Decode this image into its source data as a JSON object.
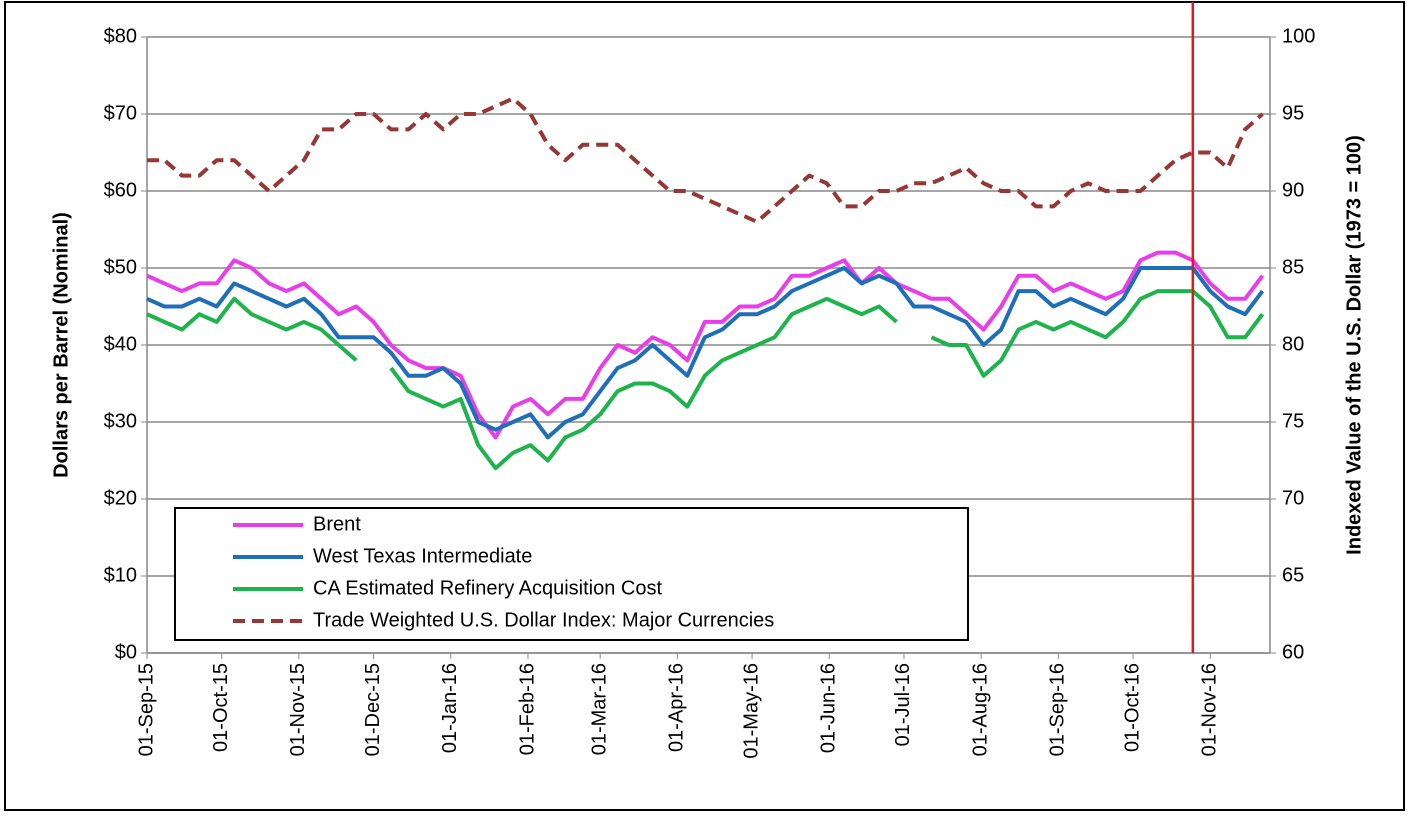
{
  "chart_data": {
    "type": "line",
    "y_label": "Dollars per Barrel (Nominal)",
    "y2_label": "Indexed Value of the U.S. Dollar (1973 = 100)",
    "x": [
      "2015-09-01",
      "2015-09-08",
      "2015-09-15",
      "2015-09-22",
      "2015-09-29",
      "2015-10-06",
      "2015-10-13",
      "2015-10-20",
      "2015-10-27",
      "2015-11-03",
      "2015-11-10",
      "2015-11-17",
      "2015-11-24",
      "2015-12-01",
      "2015-12-08",
      "2015-12-15",
      "2015-12-22",
      "2015-12-29",
      "2016-01-05",
      "2016-01-12",
      "2016-01-19",
      "2016-01-26",
      "2016-02-02",
      "2016-02-09",
      "2016-02-16",
      "2016-02-23",
      "2016-03-01",
      "2016-03-08",
      "2016-03-15",
      "2016-03-22",
      "2016-03-29",
      "2016-04-05",
      "2016-04-12",
      "2016-04-19",
      "2016-04-26",
      "2016-05-03",
      "2016-05-10",
      "2016-05-17",
      "2016-05-24",
      "2016-05-31",
      "2016-06-07",
      "2016-06-14",
      "2016-06-21",
      "2016-06-28",
      "2016-07-05",
      "2016-07-12",
      "2016-07-19",
      "2016-07-26",
      "2016-08-02",
      "2016-08-09",
      "2016-08-16",
      "2016-08-23",
      "2016-08-30",
      "2016-09-06",
      "2016-09-13",
      "2016-09-20",
      "2016-09-27",
      "2016-10-04",
      "2016-10-11",
      "2016-10-18",
      "2016-10-25",
      "2016-11-01",
      "2016-11-08",
      "2016-11-15",
      "2016-11-22"
    ],
    "series": [
      {
        "name": "Brent",
        "color": "#e83ee8",
        "dash": false,
        "values": [
          49,
          48,
          47,
          48,
          48,
          51,
          50,
          48,
          47,
          48,
          46,
          44,
          45,
          43,
          40,
          38,
          37,
          37,
          36,
          31,
          28,
          32,
          33,
          31,
          33,
          33,
          37,
          40,
          39,
          41,
          40,
          38,
          43,
          43,
          45,
          45,
          46,
          49,
          49,
          50,
          51,
          48,
          50,
          48,
          47,
          46,
          46,
          44,
          42,
          45,
          49,
          49,
          47,
          48,
          47,
          46,
          47,
          51,
          52,
          52,
          51,
          48,
          46,
          46,
          49
        ]
      },
      {
        "name": "West Texas Intermediate",
        "color": "#1f6fb8",
        "dash": false,
        "values": [
          46,
          45,
          45,
          46,
          45,
          48,
          47,
          46,
          45,
          46,
          44,
          41,
          41,
          41,
          39,
          36,
          36,
          37,
          35,
          30,
          29,
          30,
          31,
          28,
          30,
          31,
          34,
          37,
          38,
          40,
          38,
          36,
          41,
          42,
          44,
          44,
          45,
          47,
          48,
          49,
          50,
          48,
          49,
          48,
          45,
          45,
          44,
          43,
          40,
          42,
          47,
          47,
          45,
          46,
          45,
          44,
          46,
          50,
          50,
          50,
          50,
          47,
          45,
          44,
          47
        ]
      },
      {
        "name": "CA Estimated Refinery Acquisition Cost",
        "color": "#1fb34d",
        "dash": false,
        "values": [
          44,
          43,
          42,
          44,
          43,
          46,
          44,
          43,
          42,
          43,
          42,
          40,
          38,
          null,
          37,
          34,
          33,
          32,
          33,
          27,
          24,
          26,
          27,
          25,
          28,
          29,
          31,
          34,
          35,
          35,
          34,
          32,
          36,
          38,
          39,
          40,
          41,
          44,
          45,
          46,
          45,
          44,
          45,
          43,
          null,
          41,
          40,
          40,
          36,
          38,
          42,
          43,
          42,
          43,
          42,
          41,
          43,
          46,
          47,
          47,
          47,
          45,
          41,
          41,
          44
        ]
      },
      {
        "name": "Trade Weighted U.S. Dollar Index: Major Currencies",
        "color": "#953735",
        "dash": true,
        "axis": "y2",
        "values": [
          92,
          92,
          91,
          91,
          92,
          92,
          91,
          90,
          91,
          92,
          94,
          94,
          95,
          95,
          94,
          94,
          95,
          94,
          95,
          95,
          95.5,
          96,
          95,
          93,
          92,
          93,
          93,
          93,
          92,
          91,
          90,
          90,
          89.5,
          89,
          88.5,
          88,
          89,
          90,
          91,
          90.5,
          89,
          89,
          90,
          90,
          90.5,
          90.5,
          91,
          91.5,
          90.5,
          90,
          90,
          89,
          89,
          90,
          90.5,
          90,
          90,
          90,
          91,
          92,
          92.5,
          92.5,
          91.5,
          94,
          95
        ]
      }
    ],
    "xlim": [
      "2015-09-01",
      "2016-11-25"
    ],
    "xticks": [
      {
        "value": "2015-09-01",
        "label": "01-Sep-15"
      },
      {
        "value": "2015-10-01",
        "label": "01-Oct-15"
      },
      {
        "value": "2015-11-01",
        "label": "01-Nov-15"
      },
      {
        "value": "2015-12-01",
        "label": "01-Dec-15"
      },
      {
        "value": "2016-01-01",
        "label": "01-Jan-16"
      },
      {
        "value": "2016-02-01",
        "label": "01-Feb-16"
      },
      {
        "value": "2016-03-01",
        "label": "01-Mar-16"
      },
      {
        "value": "2016-04-01",
        "label": "01-Apr-16"
      },
      {
        "value": "2016-05-01",
        "label": "01-May-16"
      },
      {
        "value": "2016-06-01",
        "label": "01-Jun-16"
      },
      {
        "value": "2016-07-01",
        "label": "01-Jul-16"
      },
      {
        "value": "2016-08-01",
        "label": "01-Aug-16"
      },
      {
        "value": "2016-09-01",
        "label": "01-Sep-16"
      },
      {
        "value": "2016-10-01",
        "label": "01-Oct-16"
      },
      {
        "value": "2016-11-01",
        "label": "01-Nov-16"
      }
    ],
    "ylim": [
      0,
      80
    ],
    "yticks": [
      {
        "value": 0,
        "label": "$0"
      },
      {
        "value": 10,
        "label": "$10"
      },
      {
        "value": 20,
        "label": "$20"
      },
      {
        "value": 30,
        "label": "$30"
      },
      {
        "value": 40,
        "label": "$40"
      },
      {
        "value": 50,
        "label": "$50"
      },
      {
        "value": 60,
        "label": "$60"
      },
      {
        "value": 70,
        "label": "$70"
      },
      {
        "value": 80,
        "label": "$80"
      }
    ],
    "y2lim": [
      60,
      100
    ],
    "y2ticks": [
      60,
      65,
      70,
      75,
      80,
      85,
      90,
      95,
      100
    ],
    "grid": true,
    "vline": {
      "x": "2016-10-25",
      "color": "#e8141b"
    },
    "legend": "lower-left"
  }
}
